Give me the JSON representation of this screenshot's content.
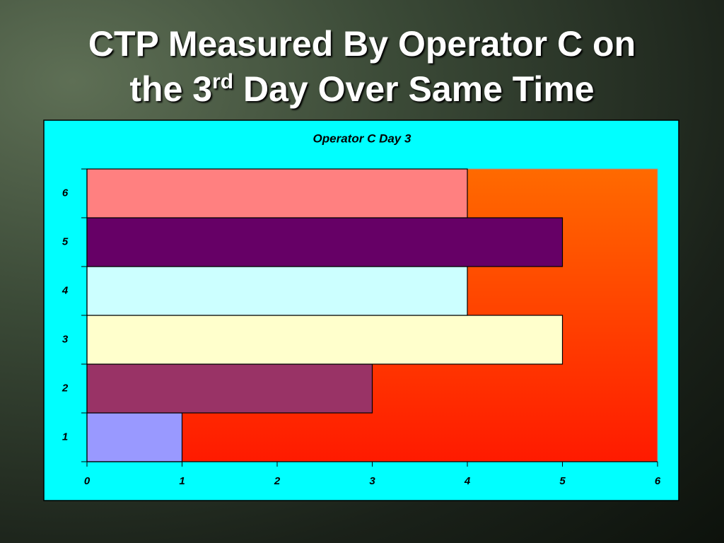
{
  "slide": {
    "title": [
      "CTP Measured By Operator C on",
      "the 3",
      "rd",
      " Day Over Same Time"
    ]
  },
  "chart_data": {
    "type": "barh",
    "title": "Operator C Day 3",
    "categories": [
      "1",
      "2",
      "3",
      "4",
      "5",
      "6"
    ],
    "values": [
      1,
      3,
      5,
      4,
      5,
      4
    ],
    "colors": [
      "#9999ff",
      "#993366",
      "#ffffcc",
      "#ccffff",
      "#660066",
      "#ff8080"
    ],
    "xlim": [
      0,
      6
    ],
    "xticks": [
      0,
      1,
      2,
      3,
      4,
      5,
      6
    ]
  }
}
